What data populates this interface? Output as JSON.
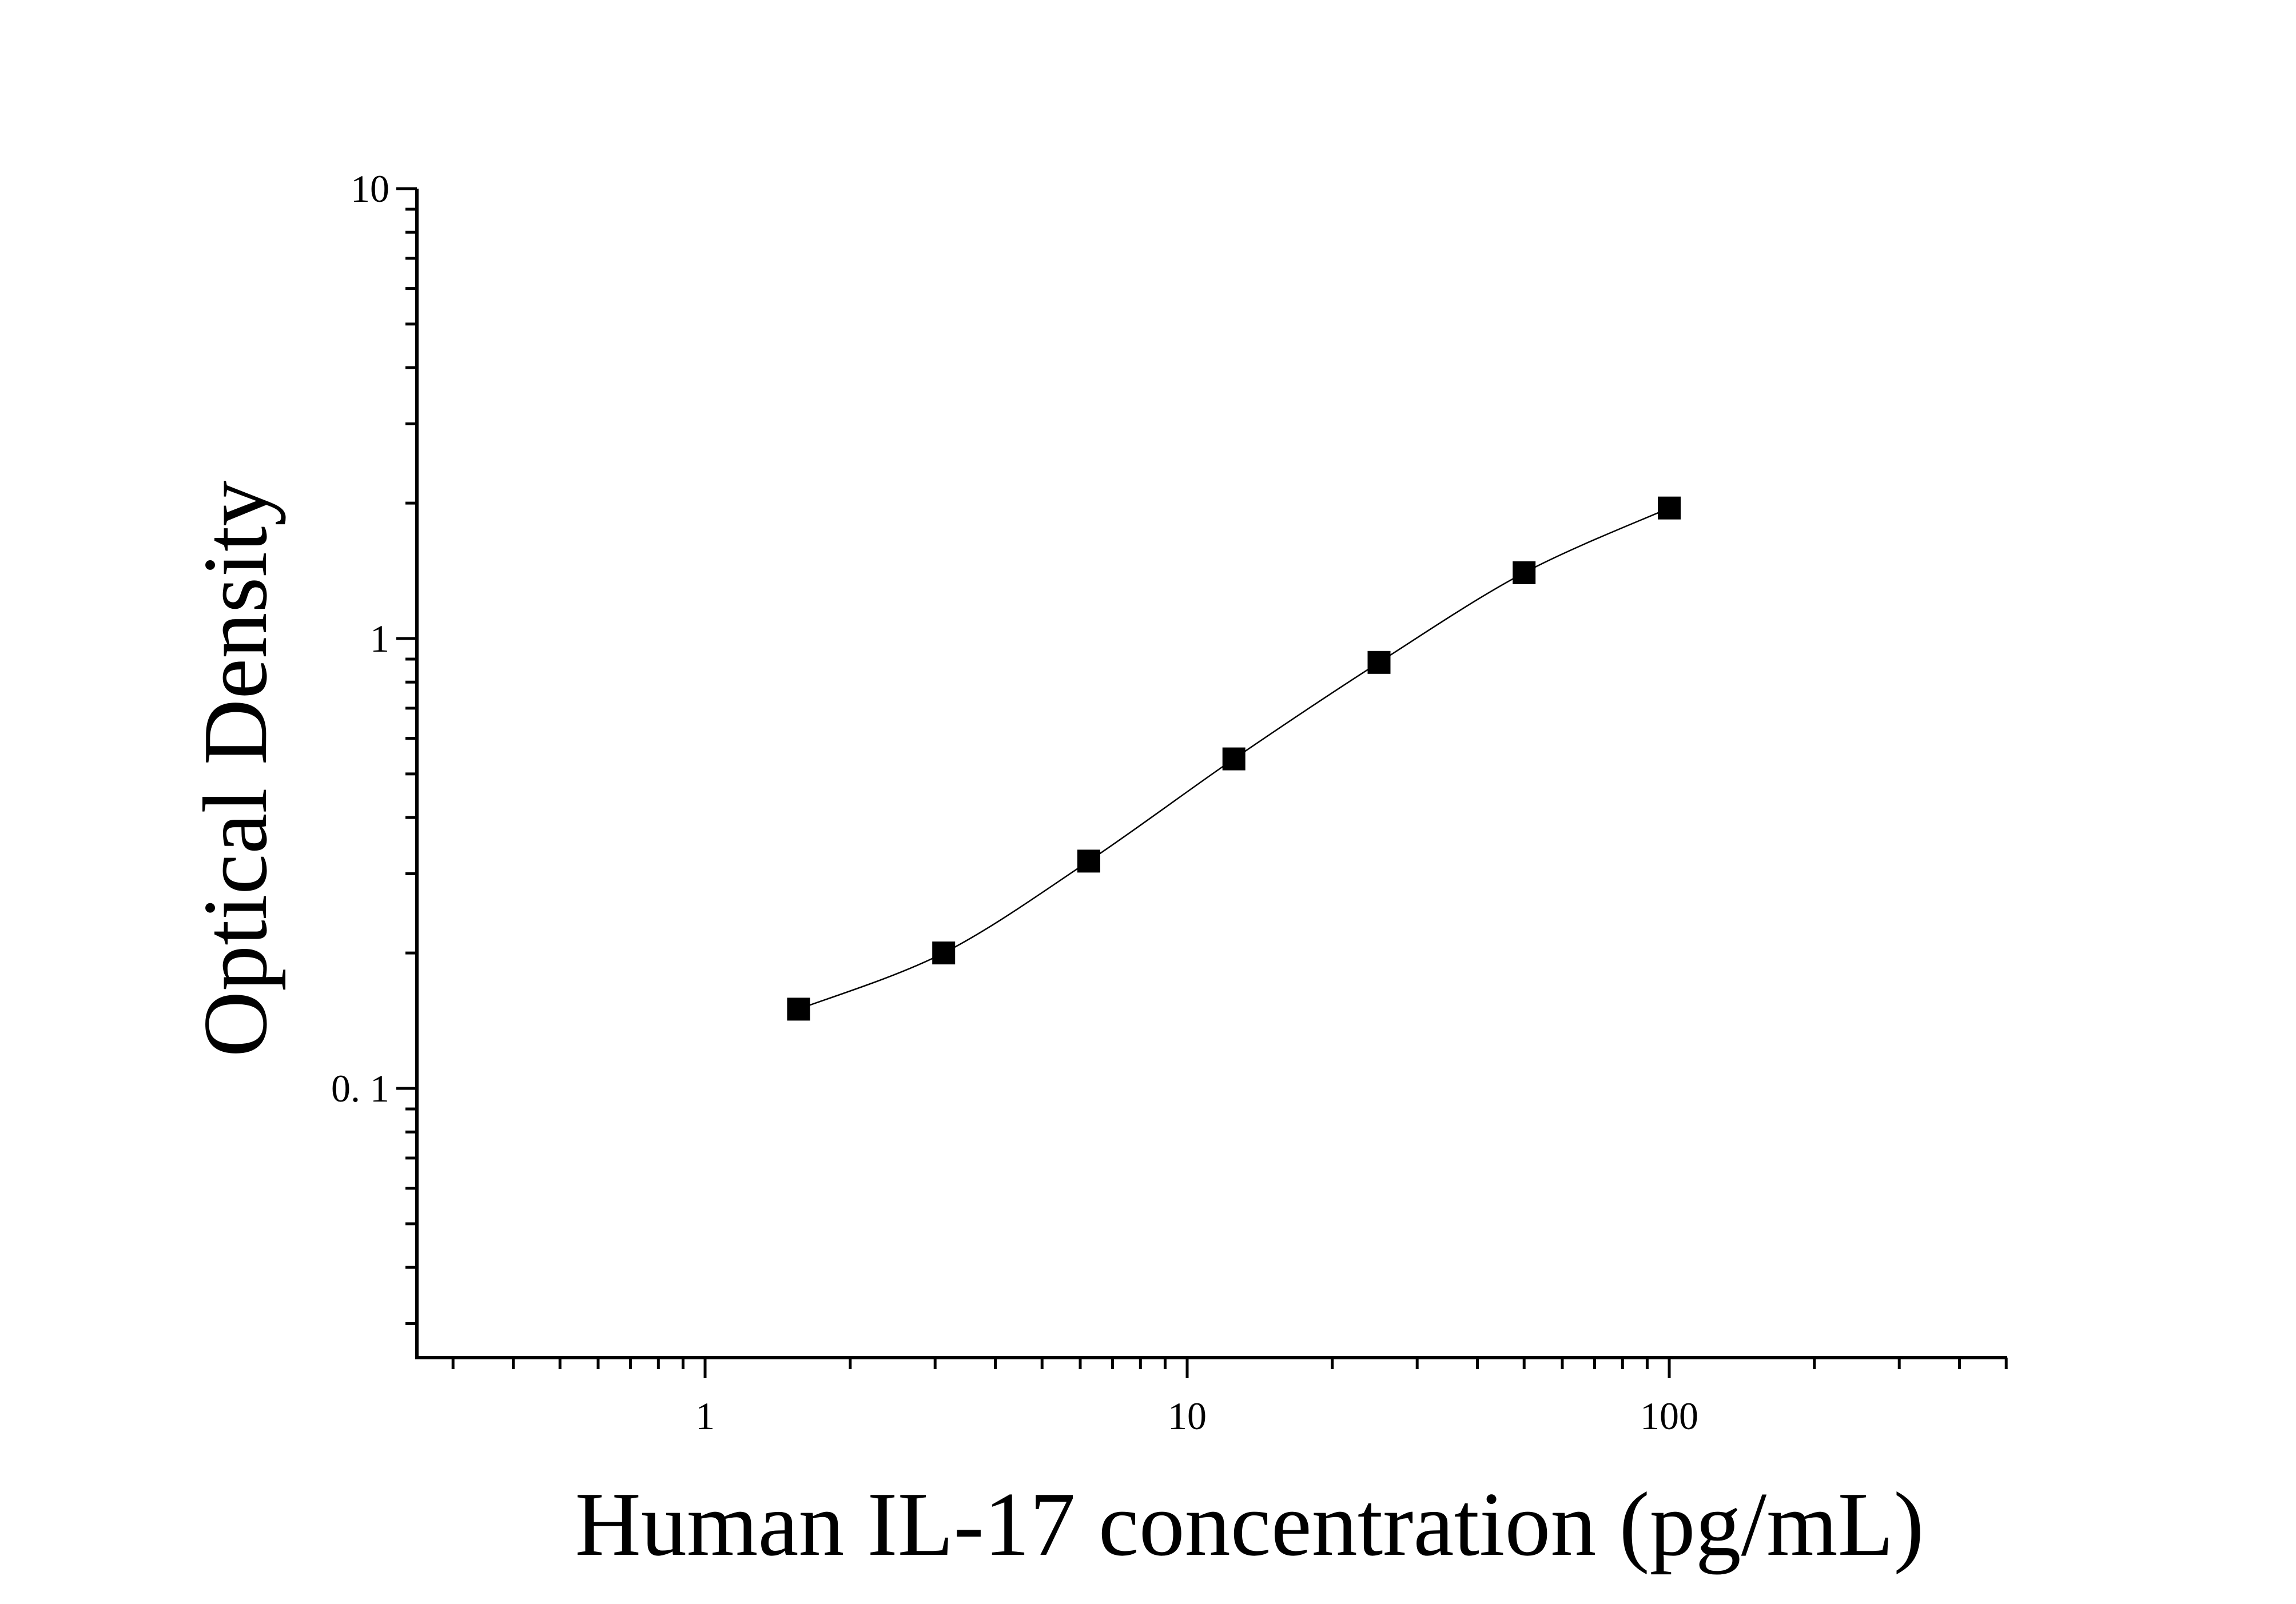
{
  "chart_data": {
    "type": "scatter",
    "xlabel": "Human IL-17 concentration (pg/mL)",
    "ylabel": "Optical Density",
    "x_scale": "log",
    "y_scale": "log",
    "xlim": [
      0.25,
      500
    ],
    "ylim": [
      0.025,
      10
    ],
    "x_tick_labels": [
      "1",
      "10",
      "100"
    ],
    "y_tick_labels": [
      "10",
      "1",
      "0. 1"
    ],
    "grid": false,
    "legend": "none",
    "marker": "square",
    "marker_color": "#000000",
    "fitted_curve": true,
    "series": [
      {
        "x": [
          1.5625,
          3.125,
          6.25,
          12.5,
          25,
          50,
          100
        ],
        "y": [
          0.15,
          0.2,
          0.32,
          0.54,
          0.885,
          1.4,
          1.95
        ]
      }
    ]
  }
}
